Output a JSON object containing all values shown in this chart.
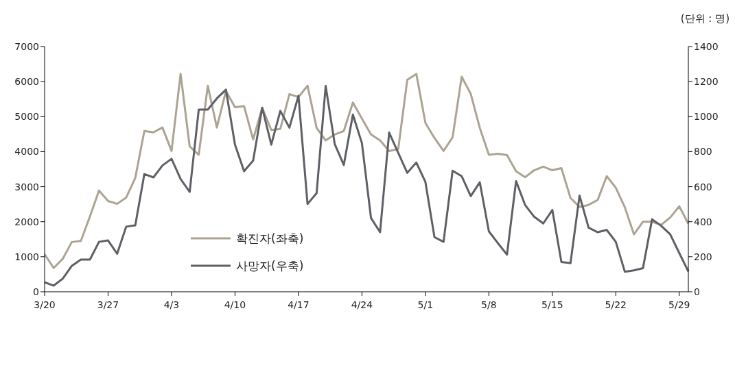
{
  "chart_data": {
    "type": "line",
    "annotations": [
      "(단위 : 명)"
    ],
    "categories": [
      "3/20",
      null,
      null,
      null,
      null,
      null,
      null,
      "3/27",
      null,
      null,
      null,
      null,
      null,
      null,
      "4/3",
      null,
      null,
      null,
      null,
      null,
      null,
      "4/10",
      null,
      null,
      null,
      null,
      null,
      null,
      "4/17",
      null,
      null,
      null,
      null,
      null,
      null,
      "4/24",
      null,
      null,
      null,
      null,
      null,
      null,
      "5/1",
      null,
      null,
      null,
      null,
      null,
      null,
      "5/8",
      null,
      null,
      null,
      null,
      null,
      null,
      "5/15",
      null,
      null,
      null,
      null,
      null,
      null,
      "5/22",
      null,
      null,
      null,
      null,
      null,
      null,
      "5/29",
      null
    ],
    "series": [
      {
        "name": "확진자(좌축)",
        "color": "#aca393",
        "values": [
          1070,
          680,
          940,
          1420,
          1450,
          2150,
          2890,
          2590,
          2510,
          2690,
          3250,
          4590,
          4550,
          4690,
          4020,
          6220,
          4150,
          3910,
          5880,
          4690,
          5730,
          5270,
          5300,
          4350,
          5250,
          4620,
          4650,
          5640,
          5560,
          5880,
          4680,
          4320,
          4490,
          4590,
          5400,
          4940,
          4490,
          4320,
          4020,
          4070,
          6050,
          6220,
          4820,
          4390,
          4020,
          4410,
          6140,
          5650,
          4680,
          3910,
          3940,
          3900,
          3440,
          3270,
          3470,
          3570,
          3470,
          3530,
          2680,
          2420,
          2480,
          2620,
          3300,
          2970,
          2410,
          1640,
          2000,
          2000,
          1910,
          2120,
          2440,
          1940
        ]
      },
      {
        "name": "사망자(우축)",
        "color": "#5f6066",
        "axis": "y2",
        "values": [
          54,
          35,
          75,
          148,
          184,
          184,
          285,
          293,
          217,
          372,
          379,
          672,
          653,
          721,
          759,
          644,
          570,
          1040,
          1040,
          1104,
          1154,
          840,
          688,
          749,
          1051,
          840,
          1033,
          937,
          1119,
          501,
          563,
          1175,
          843,
          724,
          1012,
          848,
          421,
          340,
          909,
          793,
          679,
          738,
          627,
          312,
          285,
          691,
          660,
          546,
          625,
          345,
          277,
          212,
          632,
          495,
          428,
          390,
          467,
          170,
          163,
          549,
          366,
          340,
          353,
          285,
          114,
          122,
          135,
          414,
          377,
          328,
          221,
          116
        ]
      }
    ],
    "ylim": [
      0,
      7000
    ],
    "yticks": [
      0,
      1000,
      2000,
      3000,
      4000,
      5000,
      6000,
      7000
    ],
    "y2lim": [
      0,
      1400
    ],
    "y2ticks": [
      0,
      200,
      400,
      600,
      800,
      1000,
      1200,
      1400
    ],
    "grid": false,
    "legend": "bottom left",
    "marker": "none",
    "line_style": "solid"
  }
}
